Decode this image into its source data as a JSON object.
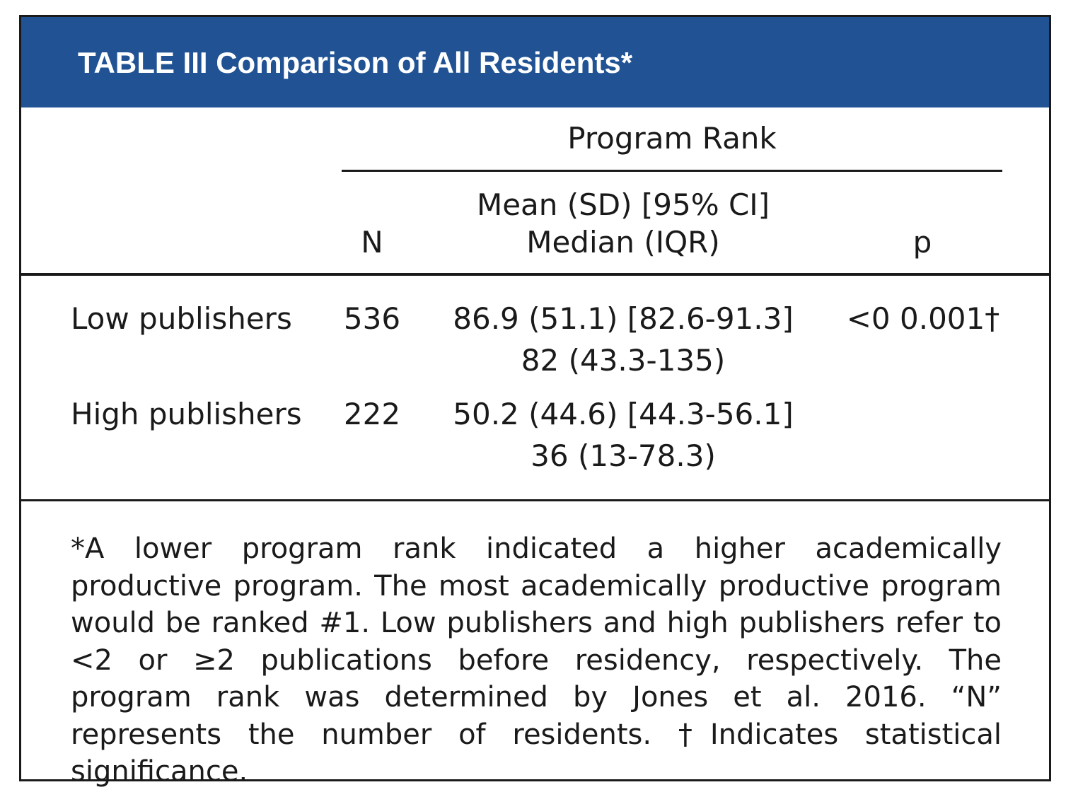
{
  "table": {
    "title": "TABLE III Comparison of All Residents*",
    "header": {
      "group_label": "Program Rank",
      "n_label": "N",
      "stat_label_line1": "Mean (SD) [95% CI]",
      "stat_label_line2": "Median (IQR)",
      "p_label": "p"
    },
    "rows": [
      {
        "label": "Low publishers",
        "n": "536",
        "mean_line": "86.9 (51.1) [82.6-91.3]",
        "median_line": "82 (43.3-135)",
        "p": "<0 0.001†"
      },
      {
        "label": "High publishers",
        "n": "222",
        "mean_line": "50.2 (44.6) [44.3-56.1]",
        "median_line": "36 (13-78.3)",
        "p": ""
      }
    ],
    "footnote": "*A lower program rank indicated a higher academically productive program. The most academically productive program would be ranked #1. Low publishers and high publishers refer to <2 or ≥2 publications before residency, respectively. The program rank was determined by Jones et al. 2016. “N” represents the number of residents. †Indicates statistical significance."
  },
  "colors": {
    "title_bar": "#215394",
    "title_text": "#ffffff",
    "text": "#1a1a1a"
  }
}
